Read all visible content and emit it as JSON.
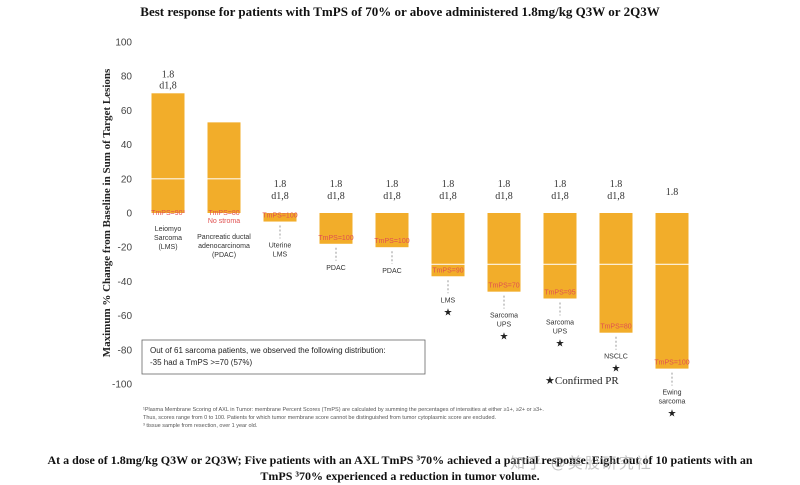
{
  "chart_data": {
    "type": "bar",
    "title": "Best response for patients with TmPS of 70% or above administered 1.8mg/kg Q3W or 2Q3W",
    "ylabel": "Maximum % Change from Baseline in Sum of Target Lesions",
    "ylim": [
      -100,
      100
    ],
    "yticks": [
      100,
      80,
      60,
      40,
      20,
      0,
      -20,
      -40,
      -60,
      -80,
      -100
    ],
    "grid_lines": [
      20,
      -30
    ],
    "bar_color": "#f2ad2a",
    "bars": [
      {
        "value": 70,
        "dose": [
          "1.8"
        ],
        "tmps": [
          "TmPS=90³"
        ],
        "category": [
          "Leiomyo",
          "Sarcoma",
          "(LMS)"
        ],
        "confirmed": false
      },
      {
        "value": 53,
        "dose": [],
        "tmps": [
          "TmPS=80",
          "No stroma"
        ],
        "category": [
          "Pancreatic ductal",
          "adenocarcinoma",
          "(PDAC)"
        ],
        "confirmed": false
      },
      {
        "value": -5,
        "dose": [
          "1.8",
          "d1,8"
        ],
        "tmps": [
          "TmPS=100"
        ],
        "category": [
          "Uterine",
          "LMS"
        ],
        "confirmed": false
      },
      {
        "value": -18,
        "dose": [
          "1.8",
          "d1,8"
        ],
        "tmps": [
          "TmPS=100"
        ],
        "category": [
          "PDAC"
        ],
        "confirmed": false
      },
      {
        "value": -20,
        "dose": [
          "1.8",
          "d1,8"
        ],
        "tmps": [
          "TmPS=100"
        ],
        "category": [
          "PDAC"
        ],
        "confirmed": false
      },
      {
        "value": -37,
        "dose": [
          "1.8",
          "d1,8"
        ],
        "tmps": [
          "TmPS=90"
        ],
        "category": [
          "LMS"
        ],
        "confirmed": true
      },
      {
        "value": -46,
        "dose": [
          "1.8",
          "d1,8"
        ],
        "tmps": [
          "TmPS=70"
        ],
        "category": [
          "Sarcoma",
          "UPS"
        ],
        "confirmed": true
      },
      {
        "value": -50,
        "dose": [
          "1.8",
          "d1,8"
        ],
        "tmps": [
          "TmPS=95"
        ],
        "category": [
          "Sarcoma",
          "UPS"
        ],
        "confirmed": true
      },
      {
        "value": -70,
        "dose": [
          "1.8",
          "d1,8"
        ],
        "tmps": [
          "TmPS=80"
        ],
        "category": [
          "NSCLC"
        ],
        "confirmed": true
      },
      {
        "value": -91,
        "dose": [
          "1.8"
        ],
        "tmps": [
          "TmPS=100"
        ],
        "category": [
          "Ewing",
          "sarcoma"
        ],
        "confirmed": true
      }
    ],
    "dose_label_first": [
      "1.8",
      "d1,8"
    ],
    "annotations": {
      "note_box": [
        "Out of 61 sarcoma patients, we observed the following distribution:",
        "-35 had a TmPS >=70 (57%)"
      ],
      "confirmed_pr": "★Confirmed PR",
      "footnotes": [
        "¹Plasma Membrane Scoring of AXL in Tumor: membrane Percent Scores (TmPS) are calculated by summing the percentages of intensities at either ≥1+, ≥2+ or ≥3+.",
        "Thus, scores range from 0 to 100. Patients for which tumor membrane score cannot be distinguished from tumor cytoplasmic score are excluded.",
        "³ tissue sample from resection, over 1 year old."
      ]
    }
  },
  "caption": {
    "line1": "At a dose of 1.8mg/kg Q3W or 2Q3W; Five patients with an AXL TmPS ³70% achieved a partial response. Eight out of 10 patients with an",
    "line2": "TmPS ³70% experienced a reduction in tumor volume."
  },
  "watermark": "知乎 @美股研究社"
}
